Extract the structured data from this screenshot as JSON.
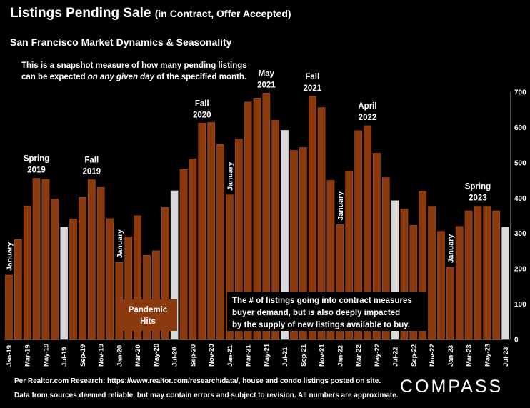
{
  "header": {
    "title": "Listings Pending Sale",
    "title_suffix": "(in Contract, Offer Accepted)",
    "subtitle": "San Francisco Market Dynamics & Seasonality",
    "note_line1": "This is a snapshot measure of how many pending listings",
    "note_pre": "can be expected ",
    "note_em": "on any given day",
    "note_post": " of the specified month."
  },
  "footer": {
    "line1": "Per Realtor.com Research:  https://www.realtor.com/research/data/, house and condo listings posted on site.",
    "line2": "Data from sources deemed reliable, but may contain errors and subject to revision. All numbers are approximate.",
    "logo": "COMPASS"
  },
  "colors": {
    "bar": "#8B3A0F",
    "bar_stroke": "#B4521A",
    "highlight": "#D9D9D9",
    "background": "#000000",
    "text": "#FFFFFF"
  },
  "chart_data": {
    "type": "bar",
    "months": [
      "Jan-19",
      "Feb-19",
      "Mar-19",
      "Apr-19",
      "May-19",
      "Jun-19",
      "Jul-19",
      "Aug-19",
      "Sep-19",
      "Oct-19",
      "Nov-19",
      "Dec-19",
      "Jan-20",
      "Feb-20",
      "Mar-20",
      "Apr-20",
      "May-20",
      "Jun-20",
      "Jul-20",
      "Aug-20",
      "Sep-20",
      "Oct-20",
      "Nov-20",
      "Dec-20",
      "Jan-21",
      "Feb-21",
      "Mar-21",
      "Apr-21",
      "May-21",
      "Jun-21",
      "Jul-21",
      "Aug-21",
      "Sep-21",
      "Oct-21",
      "Nov-21",
      "Dec-21",
      "Jan-22",
      "Feb-22",
      "Mar-22",
      "Apr-22",
      "May-22",
      "Jun-22",
      "Jul-22",
      "Aug-22",
      "Sep-22",
      "Oct-22",
      "Nov-22",
      "Dec-22",
      "Jan-23",
      "Feb-23",
      "Mar-23",
      "Apr-23",
      "May-23",
      "Jun-23",
      "Jul-23"
    ],
    "values": [
      182,
      283,
      378,
      456,
      453,
      397,
      318,
      341,
      402,
      452,
      430,
      342,
      218,
      291,
      350,
      238,
      251,
      374,
      421,
      481,
      511,
      612,
      614,
      552,
      409,
      567,
      672,
      683,
      697,
      620,
      592,
      535,
      543,
      688,
      656,
      450,
      325,
      476,
      591,
      605,
      527,
      458,
      393,
      369,
      323,
      419,
      377,
      306,
      204,
      320,
      364,
      377,
      377,
      364,
      318
    ],
    "highlighted": [
      "Jul-19",
      "Jul-20",
      "Jul-21",
      "Jul-22",
      "Jul-23"
    ],
    "x_tick_labels": [
      "Jan-19",
      "Mar-19",
      "May-19",
      "Jul-19",
      "Sep-19",
      "Nov-19",
      "Jan-20",
      "Mar-20",
      "May-20",
      "Jul-20",
      "Sep-20",
      "Nov-20",
      "Jan-21",
      "Mar-21",
      "May-21",
      "Jul-21",
      "Sep-21",
      "Nov-21",
      "Jan-22",
      "Mar-22",
      "May-22",
      "Jul-22",
      "Sep-22",
      "Nov-22",
      "Jan-23",
      "Mar-23",
      "May-23",
      "Jul-23"
    ],
    "y_ticks": [
      0,
      100,
      200,
      300,
      400,
      500,
      600,
      700
    ],
    "ylim": [
      0,
      700
    ],
    "y_axis_position": "right",
    "grid": false,
    "annotations": [
      {
        "text": "January",
        "month": "Jan-19",
        "orientation": "vertical"
      },
      {
        "text": "January",
        "month": "Jan-20",
        "orientation": "vertical"
      },
      {
        "text": "January",
        "month": "Jan-21",
        "orientation": "vertical"
      },
      {
        "text": "January",
        "month": "Jan-22",
        "orientation": "vertical"
      },
      {
        "text": "January",
        "month": "Jan-23",
        "orientation": "vertical"
      },
      {
        "text": "Spring\n2019",
        "month": "Apr-19"
      },
      {
        "text": "Fall\n2019",
        "month": "Oct-19"
      },
      {
        "text": "Fall\n2020",
        "month": "Oct-20"
      },
      {
        "text": "May\n2021",
        "month": "May-21"
      },
      {
        "text": "Fall\n2021",
        "month": "Oct-21"
      },
      {
        "text": "April\n2022",
        "month": "Apr-22"
      },
      {
        "text": "Spring\n2023",
        "month": "Apr-23"
      }
    ],
    "callouts": [
      {
        "text": "Pandemic\nHits",
        "style": "brown"
      },
      {
        "text": "The # of listings going into contract measures\nbuyer demand, but is also deeply impacted\nby the supply of new listings available to buy.",
        "style": "black"
      }
    ]
  }
}
